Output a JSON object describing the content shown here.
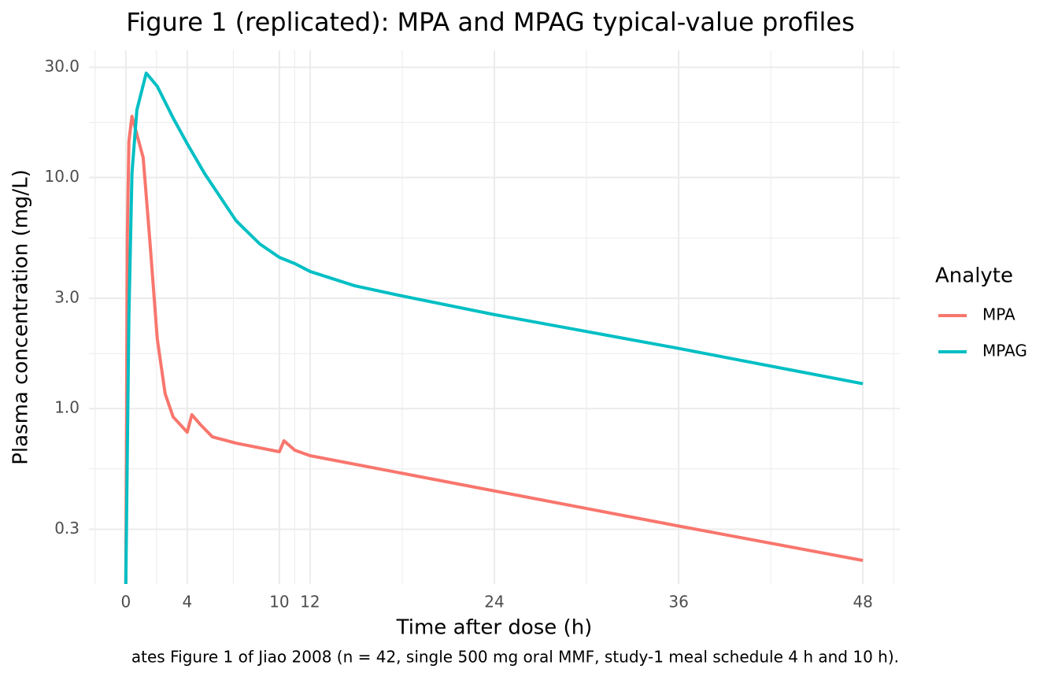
{
  "chart_data": {
    "type": "line",
    "title": "Figure 1 (replicated): MPA and MPAG typical-value profiles",
    "x_label": "Time after dose (h)",
    "y_label": "Plasma concentration (mg/L)",
    "caption": "ates Figure 1 of Jiao 2008 (n = 42, single 500 mg oral MMF, study-1 meal schedule 4 h and 10 h).",
    "legend_title": "Analyte",
    "legend_position": "right",
    "y_log": true,
    "grid": true,
    "xlim": [
      -2.4,
      50.4
    ],
    "ylim": [
      0.174,
      35.5
    ],
    "xticks": [
      0,
      4,
      10,
      12,
      24,
      36,
      48
    ],
    "x_minor_ticks": [
      -2,
      2,
      7,
      11,
      18,
      30,
      42,
      50
    ],
    "yticks": [
      0.3,
      {
        "value": 1,
        "label": "1.0"
      },
      {
        "value": 3,
        "label": "3.0"
      },
      {
        "value": 10,
        "label": "10.0"
      },
      {
        "value": 30,
        "label": "30.0"
      }
    ],
    "y_minor_ticks": [
      0.548,
      1.73,
      5.48,
      17.3
    ],
    "series": [
      {
        "name": "MPA",
        "color": "#F8766D",
        "x": [
          0,
          0.1,
          0.2,
          0.4,
          1.13,
          1.54,
          2.05,
          2.56,
          3.08,
          4,
          4.3,
          4.87,
          5.64,
          7.18,
          10,
          10.3,
          11,
          12,
          24,
          36,
          48
        ],
        "values": [
          0.174,
          5.6,
          14.3,
          18.4,
          12.2,
          5.6,
          2.0,
          1.16,
          0.92,
          0.79,
          0.94,
          0.85,
          0.754,
          0.708,
          0.65,
          0.725,
          0.66,
          0.625,
          0.44,
          0.31,
          0.22
        ]
      },
      {
        "name": "MPAG",
        "color": "#00BFC4",
        "x": [
          0,
          0.2,
          0.4,
          0.72,
          1.33,
          2.05,
          3.08,
          4,
          5.13,
          7.18,
          8.72,
          10,
          11,
          12,
          14.9,
          18,
          24,
          36,
          48
        ],
        "values": [
          0.174,
          2.5,
          10.4,
          19.6,
          28.3,
          24.8,
          18.1,
          14.0,
          10.4,
          6.5,
          5.16,
          4.51,
          4.24,
          3.92,
          3.4,
          3.07,
          2.55,
          1.82,
          1.28
        ]
      }
    ]
  }
}
